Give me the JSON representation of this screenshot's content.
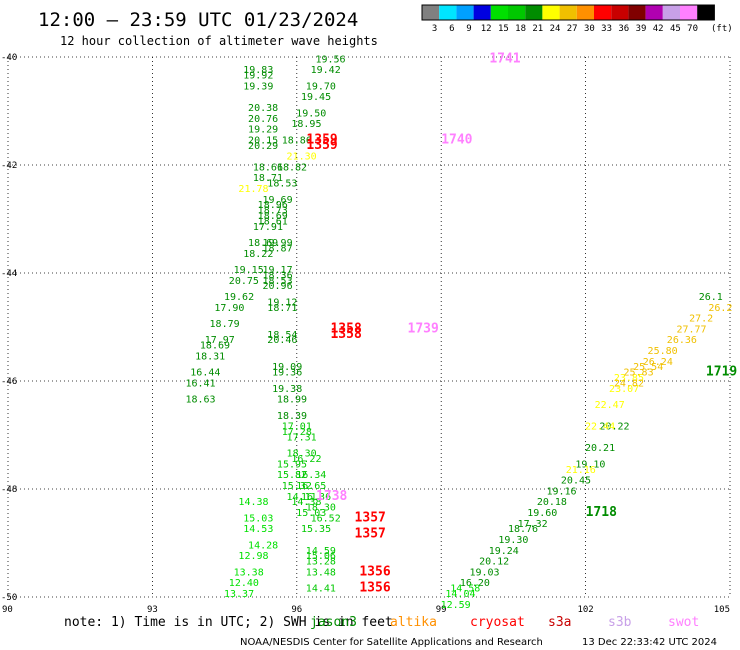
{
  "header": {
    "title": "12:00 – 23:59 UTC 01/23/2024",
    "subtitle": "12 hour collection of altimeter wave heights"
  },
  "legend": {
    "unit": "(ft)",
    "bins": [
      {
        "label": "3",
        "color": "#808080"
      },
      {
        "label": "6",
        "color": "#00e5ff"
      },
      {
        "label": "9",
        "color": "#00a0ff"
      },
      {
        "label": "12",
        "color": "#0000e0"
      },
      {
        "label": "15",
        "color": "#00e000"
      },
      {
        "label": "18",
        "color": "#00c800"
      },
      {
        "label": "21",
        "color": "#008c00"
      },
      {
        "label": "24",
        "color": "#ffff00"
      },
      {
        "label": "27",
        "color": "#f0c000"
      },
      {
        "label": "30",
        "color": "#ff9000"
      },
      {
        "label": "33",
        "color": "#ff0000"
      },
      {
        "label": "36",
        "color": "#c80000"
      },
      {
        "label": "39",
        "color": "#800000"
      },
      {
        "label": "42",
        "color": "#b000b0"
      },
      {
        "label": "45",
        "color": "#c8a0e8"
      },
      {
        "label": "70",
        "color": "#ff80ff"
      },
      {
        "label": "",
        "color": "#000000"
      }
    ]
  },
  "note": {
    "text": "note: 1) Time is in UTC; 2) SWH is in feet",
    "satellites": [
      {
        "name": "jason3",
        "color": "#008c00"
      },
      {
        "name": "altika",
        "color": "#ff9000"
      },
      {
        "name": "cryosat",
        "color": "#ff0000"
      },
      {
        "name": "s3a",
        "color": "#c80000"
      },
      {
        "name": "s3b",
        "color": "#c8a0e8"
      },
      {
        "name": "swot",
        "color": "#ff80ff"
      }
    ]
  },
  "footer": {
    "credit": "NOAA/NESDIS Center for Satellite Applications and Research",
    "timestamp": "13 Dec 22:33:42 UTC 2024"
  },
  "chart_data": {
    "type": "scatter",
    "title": "12:00 – 23:59 UTC 01/23/2024",
    "subtitle": "12 hour collection of altimeter wave heights",
    "xlim": [
      90,
      105
    ],
    "ylim": [
      -50,
      -40
    ],
    "x_ticks": [
      "90",
      "93",
      "96",
      "99",
      "102",
      "105"
    ],
    "y_ticks": [
      "-40",
      "-42",
      "-44",
      "-46",
      "-48",
      "-50"
    ],
    "grid": true,
    "pass_labels": [
      {
        "text": "1741",
        "x": 100.0,
        "y": -40.1,
        "color": "#ff80ff"
      },
      {
        "text": "1740",
        "x": 99.0,
        "y": -41.6,
        "color": "#ff80ff"
      },
      {
        "text": "1739",
        "x": 98.3,
        "y": -45.1,
        "color": "#ff80ff"
      },
      {
        "text": "1738",
        "x": 96.4,
        "y": -48.2,
        "color": "#ff80ff"
      },
      {
        "text": "1359",
        "x": 96.2,
        "y": -41.6,
        "color": "#ff0000"
      },
      {
        "text": "1359",
        "x": 96.2,
        "y": -41.7,
        "color": "#ff0000"
      },
      {
        "text": "1358",
        "x": 96.7,
        "y": -45.1,
        "color": "#ff0000"
      },
      {
        "text": "1358",
        "x": 96.7,
        "y": -45.2,
        "color": "#ff0000"
      },
      {
        "text": "1357",
        "x": 97.2,
        "y": -48.6,
        "color": "#ff0000"
      },
      {
        "text": "1357",
        "x": 97.2,
        "y": -48.9,
        "color": "#ff0000"
      },
      {
        "text": "1356",
        "x": 97.3,
        "y": -49.6,
        "color": "#ff0000"
      },
      {
        "text": "1356",
        "x": 97.3,
        "y": -49.9,
        "color": "#ff0000"
      },
      {
        "text": "1719",
        "x": 104.5,
        "y": -45.9,
        "color": "#008c00"
      },
      {
        "text": "1718",
        "x": 102.0,
        "y": -48.5,
        "color": "#008c00"
      }
    ],
    "series": [
      {
        "color": "#008c00",
        "points": [
          {
            "x": 95.2,
            "y": -40.3,
            "v": "19.83"
          },
          {
            "x": 95.2,
            "y": -40.4,
            "v": "19.92"
          },
          {
            "x": 95.2,
            "y": -40.6,
            "v": "19.39"
          },
          {
            "x": 95.3,
            "y": -41.0,
            "v": "20.38"
          },
          {
            "x": 95.3,
            "y": -41.2,
            "v": "20.76"
          },
          {
            "x": 95.3,
            "y": -41.4,
            "v": "19.29"
          },
          {
            "x": 95.3,
            "y": -41.6,
            "v": "20.15"
          },
          {
            "x": 95.3,
            "y": -41.7,
            "v": "20.29"
          },
          {
            "x": 95.4,
            "y": -42.1,
            "v": "18.66"
          },
          {
            "x": 95.4,
            "y": -42.3,
            "v": "18.71"
          },
          {
            "x": 95.5,
            "y": -42.8,
            "v": "18.96"
          },
          {
            "x": 95.5,
            "y": -43.0,
            "v": "18.69"
          },
          {
            "x": 95.5,
            "y": -43.1,
            "v": "18.61"
          },
          {
            "x": 95.6,
            "y": -43.5,
            "v": "19.99"
          },
          {
            "x": 95.6,
            "y": -43.6,
            "v": "18.87"
          },
          {
            "x": 95.6,
            "y": -44.0,
            "v": "19.17"
          },
          {
            "x": 95.6,
            "y": -44.1,
            "v": "18.36"
          },
          {
            "x": 95.6,
            "y": -44.2,
            "v": "18.53"
          },
          {
            "x": 95.6,
            "y": -44.3,
            "v": "20.96"
          },
          {
            "x": 95.7,
            "y": -44.6,
            "v": "19.12"
          },
          {
            "x": 95.7,
            "y": -44.7,
            "v": "18.71"
          },
          {
            "x": 95.7,
            "y": -45.2,
            "v": "18.54"
          },
          {
            "x": 95.7,
            "y": -45.3,
            "v": "20.46"
          },
          {
            "x": 95.8,
            "y": -45.8,
            "v": "19.09"
          },
          {
            "x": 95.8,
            "y": -45.9,
            "v": "19.36"
          },
          {
            "x": 95.8,
            "y": -46.2,
            "v": "19.38"
          },
          {
            "x": 95.9,
            "y": -46.4,
            "v": "18.99"
          },
          {
            "x": 95.9,
            "y": -46.7,
            "v": "18.39"
          },
          {
            "x": 96.7,
            "y": -40.1,
            "v": "19.56"
          },
          {
            "x": 96.6,
            "y": -40.3,
            "v": "19.42"
          },
          {
            "x": 96.5,
            "y": -40.6,
            "v": "19.70"
          },
          {
            "x": 96.4,
            "y": -40.8,
            "v": "19.45"
          },
          {
            "x": 96.3,
            "y": -41.1,
            "v": "19.50"
          },
          {
            "x": 96.2,
            "y": -41.3,
            "v": "18.95"
          },
          {
            "x": 96.0,
            "y": -41.6,
            "v": "18.86"
          },
          {
            "x": 95.9,
            "y": -42.1,
            "v": "18.82"
          },
          {
            "x": 95.7,
            "y": -42.4,
            "v": "18.53"
          },
          {
            "x": 95.6,
            "y": -42.7,
            "v": "19.69"
          },
          {
            "x": 95.5,
            "y": -42.9,
            "v": "18.73"
          },
          {
            "x": 95.4,
            "y": -43.2,
            "v": "17.91"
          },
          {
            "x": 95.3,
            "y": -43.5,
            "v": "18.69"
          },
          {
            "x": 95.2,
            "y": -43.7,
            "v": "18.22"
          },
          {
            "x": 95.0,
            "y": -44.0,
            "v": "19.15"
          },
          {
            "x": 94.9,
            "y": -44.2,
            "v": "20.75"
          },
          {
            "x": 94.8,
            "y": -44.5,
            "v": "19.62"
          },
          {
            "x": 94.6,
            "y": -44.7,
            "v": "17.90"
          },
          {
            "x": 94.5,
            "y": -45.0,
            "v": "18.79"
          },
          {
            "x": 94.4,
            "y": -45.3,
            "v": "17.97"
          },
          {
            "x": 94.3,
            "y": -45.4,
            "v": "18.69"
          },
          {
            "x": 94.2,
            "y": -45.6,
            "v": "18.31"
          },
          {
            "x": 94.1,
            "y": -45.9,
            "v": "16.44"
          },
          {
            "x": 94.0,
            "y": -46.1,
            "v": "16.41"
          },
          {
            "x": 94.0,
            "y": -46.4,
            "v": "18.63"
          },
          {
            "x": 104.6,
            "y": -44.5,
            "v": "26.1"
          },
          {
            "x": 102.6,
            "y": -46.9,
            "v": "20.22"
          },
          {
            "x": 102.3,
            "y": -47.3,
            "v": "20.21"
          },
          {
            "x": 102.1,
            "y": -47.6,
            "v": "19.10"
          },
          {
            "x": 101.8,
            "y": -47.9,
            "v": "20.45"
          },
          {
            "x": 101.5,
            "y": -48.1,
            "v": "19.16"
          },
          {
            "x": 101.3,
            "y": -48.3,
            "v": "20.18"
          },
          {
            "x": 101.1,
            "y": -48.5,
            "v": "19.60"
          },
          {
            "x": 100.9,
            "y": -48.7,
            "v": "17.32"
          },
          {
            "x": 100.7,
            "y": -48.8,
            "v": "18.76"
          },
          {
            "x": 100.5,
            "y": -49.0,
            "v": "19.30"
          },
          {
            "x": 100.3,
            "y": -49.2,
            "v": "19.24"
          },
          {
            "x": 100.1,
            "y": -49.4,
            "v": "20.12"
          },
          {
            "x": 99.9,
            "y": -49.6,
            "v": "19.03"
          },
          {
            "x": 99.7,
            "y": -49.8,
            "v": "16.20"
          }
        ]
      },
      {
        "color": "#00c800",
        "points": [
          {
            "x": 96.0,
            "y": -46.9,
            "v": "17.01"
          },
          {
            "x": 96.0,
            "y": -47.0,
            "v": "17.28"
          },
          {
            "x": 96.1,
            "y": -47.1,
            "v": "17.31"
          },
          {
            "x": 96.1,
            "y": -47.4,
            "v": "18.30"
          },
          {
            "x": 96.2,
            "y": -47.5,
            "v": "16.22"
          },
          {
            "x": 96.3,
            "y": -47.8,
            "v": "16.34"
          },
          {
            "x": 96.3,
            "y": -48.0,
            "v": "16.65"
          },
          {
            "x": 96.4,
            "y": -48.2,
            "v": "16.36"
          },
          {
            "x": 96.5,
            "y": -48.4,
            "v": "18.30"
          },
          {
            "x": 96.6,
            "y": -48.6,
            "v": "16.52"
          },
          {
            "x": 95.9,
            "y": -47.6,
            "v": "15.95"
          },
          {
            "x": 95.9,
            "y": -47.8,
            "v": "15.82"
          },
          {
            "x": 96.0,
            "y": -48.0,
            "v": "15.32"
          },
          {
            "x": 96.1,
            "y": -48.2,
            "v": "14.11"
          },
          {
            "x": 96.2,
            "y": -48.3,
            "v": "14.38"
          },
          {
            "x": 96.3,
            "y": -48.5,
            "v": "15.03"
          },
          {
            "x": 96.4,
            "y": -48.8,
            "v": "15.35"
          },
          {
            "x": 96.5,
            "y": -49.2,
            "v": "14.59"
          },
          {
            "x": 96.5,
            "y": -49.3,
            "v": "15.06"
          },
          {
            "x": 96.5,
            "y": -49.4,
            "v": "13.28"
          },
          {
            "x": 96.5,
            "y": -49.6,
            "v": "13.48"
          },
          {
            "x": 96.5,
            "y": -49.9,
            "v": "14.41"
          }
        ]
      },
      {
        "color": "#00e000",
        "points": [
          {
            "x": 95.1,
            "y": -48.3,
            "v": "14.38"
          },
          {
            "x": 95.2,
            "y": -48.6,
            "v": "15.03"
          },
          {
            "x": 95.2,
            "y": -48.8,
            "v": "14.53"
          },
          {
            "x": 95.3,
            "y": -49.1,
            "v": "14.28"
          },
          {
            "x": 95.1,
            "y": -49.3,
            "v": "12.98"
          },
          {
            "x": 95.0,
            "y": -49.6,
            "v": "13.38"
          },
          {
            "x": 94.9,
            "y": -49.8,
            "v": "12.40"
          },
          {
            "x": 94.8,
            "y": -50.0,
            "v": "13.37"
          },
          {
            "x": 99.5,
            "y": -49.9,
            "v": "14.58"
          },
          {
            "x": 99.4,
            "y": -50.0,
            "v": "14.04"
          },
          {
            "x": 99.3,
            "y": -50.2,
            "v": "12.59"
          }
        ]
      },
      {
        "color": "#ffff00",
        "points": [
          {
            "x": 95.1,
            "y": -42.5,
            "v": "21.78"
          },
          {
            "x": 96.1,
            "y": -41.9,
            "v": "21.30"
          },
          {
            "x": 101.9,
            "y": -47.7,
            "v": "21.16"
          },
          {
            "x": 102.5,
            "y": -46.5,
            "v": "22.47"
          },
          {
            "x": 102.3,
            "y": -46.9,
            "v": "22.44"
          },
          {
            "x": 102.9,
            "y": -46.0,
            "v": "23.85"
          },
          {
            "x": 102.8,
            "y": -46.2,
            "v": "23.07"
          }
        ]
      },
      {
        "color": "#f0c000",
        "points": [
          {
            "x": 104.8,
            "y": -44.7,
            "v": "26.2"
          },
          {
            "x": 104.4,
            "y": -44.9,
            "v": "27.2"
          },
          {
            "x": 104.2,
            "y": -45.1,
            "v": "27.77"
          },
          {
            "x": 104.0,
            "y": -45.3,
            "v": "26.36"
          },
          {
            "x": 103.6,
            "y": -45.5,
            "v": "25.80"
          },
          {
            "x": 103.5,
            "y": -45.7,
            "v": "26.24"
          },
          {
            "x": 103.3,
            "y": -45.8,
            "v": "25.54"
          },
          {
            "x": 103.1,
            "y": -45.9,
            "v": "25.83"
          },
          {
            "x": 102.9,
            "y": -46.1,
            "v": "24.82"
          }
        ]
      }
    ]
  }
}
